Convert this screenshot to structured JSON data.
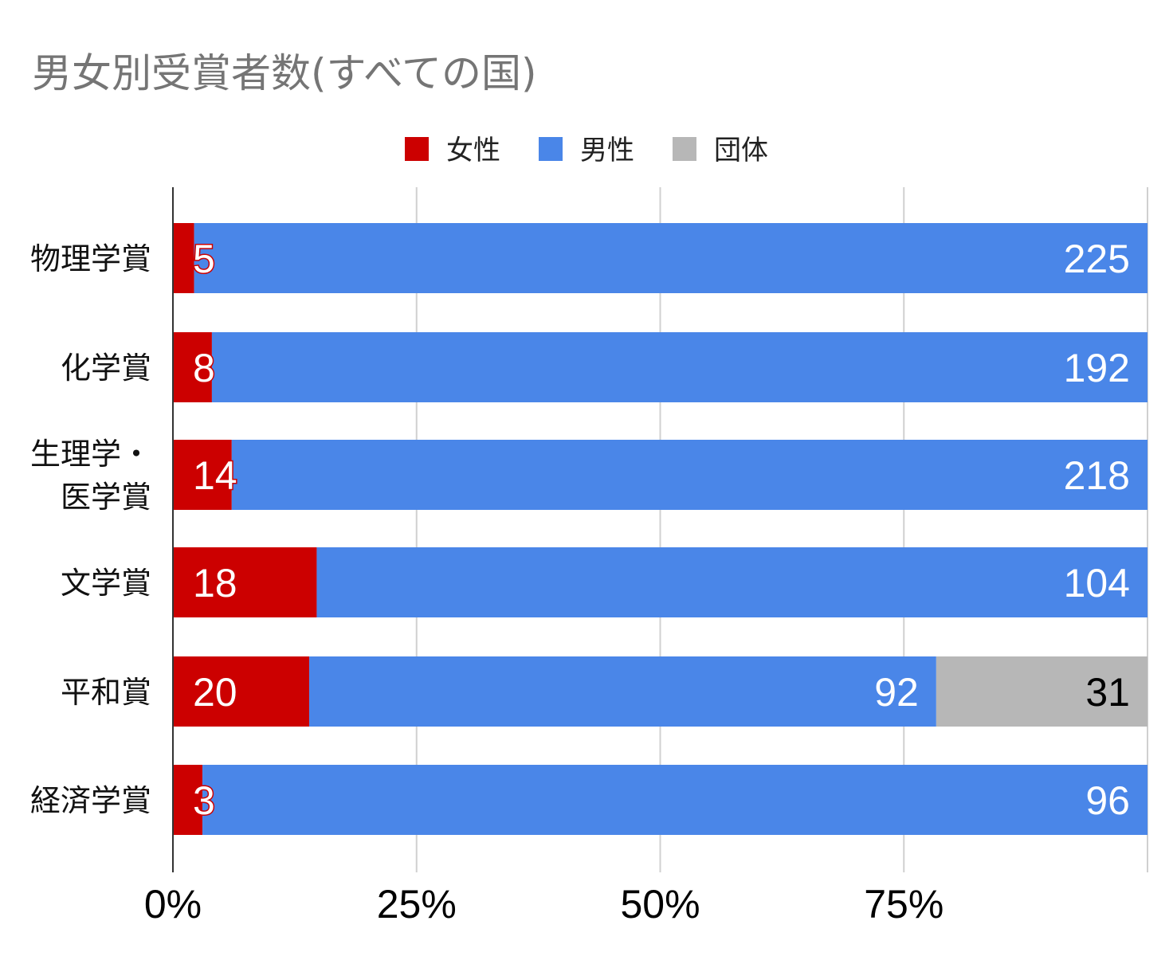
{
  "chart_data": {
    "type": "bar",
    "orientation": "horizontal",
    "stacking": "percent",
    "title": "男女別受賞者数(すべての国)",
    "categories": [
      "物理学賞",
      "化学賞",
      "生理学・医学賞",
      "文学賞",
      "平和賞",
      "経済学賞"
    ],
    "category_label_lines": [
      [
        "物理学賞"
      ],
      [
        "化学賞"
      ],
      [
        "生理学・",
        "医学賞"
      ],
      [
        "文学賞"
      ],
      [
        "平和賞"
      ],
      [
        "経済学賞"
      ]
    ],
    "series": [
      {
        "name": "女性",
        "color": "#cc0000",
        "label_color": "#ffffff",
        "values": [
          5,
          8,
          14,
          18,
          20,
          3
        ]
      },
      {
        "name": "男性",
        "color": "#4a86e8",
        "label_color": "#ffffff",
        "values": [
          225,
          192,
          218,
          104,
          92,
          96
        ]
      },
      {
        "name": "団体",
        "color": "#b7b7b7",
        "label_color": "#000000",
        "values": [
          0,
          0,
          0,
          0,
          31,
          0
        ]
      }
    ],
    "xlim": [
      0,
      1
    ],
    "x_ticks": [
      "0%",
      "25%",
      "50%",
      "75%"
    ],
    "grid": true,
    "legend_position": "top"
  }
}
